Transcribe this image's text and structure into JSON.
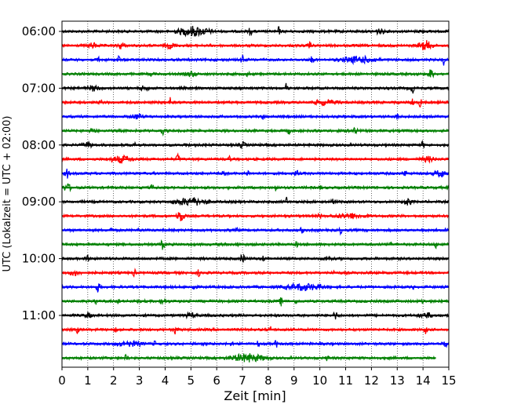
{
  "chart_data": {
    "type": "line",
    "title": "",
    "xlabel": "Zeit  [min]",
    "ylabel": "UTC (Lokalzeit = UTC + 02:00)",
    "xlim": [
      0,
      15
    ],
    "x_ticks": [
      0,
      1,
      2,
      3,
      4,
      5,
      6,
      7,
      8,
      9,
      10,
      11,
      12,
      13,
      14,
      15
    ],
    "x_grid": true,
    "y_tick_labels": [
      "06:00",
      "07:00",
      "08:00",
      "09:00",
      "10:00",
      "11:00"
    ],
    "colors": [
      "#000000",
      "#ff0000",
      "#0000ff",
      "#008000"
    ],
    "rows": [
      {
        "time": "06:00",
        "color": "#000000",
        "end_min": 15,
        "events": [
          [
            5.1,
            0.9,
            6
          ],
          [
            7.3,
            0.08,
            6
          ],
          [
            8.4,
            0.08,
            6
          ],
          [
            12.3,
            0.3,
            3
          ],
          [
            13.9,
            0.08,
            4
          ]
        ]
      },
      {
        "time": "06:15",
        "color": "#ff0000",
        "end_min": 15,
        "events": [
          [
            1.2,
            0.3,
            3
          ],
          [
            2.3,
            0.2,
            4
          ],
          [
            4.2,
            0.3,
            3
          ],
          [
            9.6,
            0.08,
            6
          ],
          [
            14.1,
            0.4,
            6
          ]
        ]
      },
      {
        "time": "06:30",
        "color": "#0000ff",
        "end_min": 15,
        "events": [
          [
            1.4,
            0.08,
            5
          ],
          [
            2.2,
            0.08,
            5
          ],
          [
            7.0,
            0.08,
            7
          ],
          [
            9.7,
            0.08,
            6
          ],
          [
            11.5,
            1.0,
            4
          ],
          [
            14.8,
            0.08,
            6
          ]
        ]
      },
      {
        "time": "06:45",
        "color": "#008000",
        "end_min": 15,
        "events": [
          [
            3.5,
            0.08,
            4
          ],
          [
            5.0,
            0.3,
            3
          ],
          [
            7.2,
            0.08,
            4
          ],
          [
            14.3,
            0.15,
            6
          ]
        ]
      },
      {
        "time": "07:00",
        "color": "#000000",
        "end_min": 15,
        "events": [
          [
            1.2,
            0.4,
            3
          ],
          [
            3.2,
            0.2,
            3
          ],
          [
            8.7,
            0.1,
            6
          ],
          [
            13.6,
            0.1,
            6
          ]
        ]
      },
      {
        "time": "07:15",
        "color": "#ff0000",
        "end_min": 15,
        "events": [
          [
            1.5,
            0.08,
            4
          ],
          [
            4.2,
            0.08,
            6
          ],
          [
            10.2,
            0.7,
            3
          ],
          [
            13.6,
            0.08,
            6
          ],
          [
            13.9,
            0.08,
            6
          ]
        ]
      },
      {
        "time": "07:30",
        "color": "#0000ff",
        "end_min": 15,
        "events": [
          [
            2.9,
            0.3,
            3
          ],
          [
            7.8,
            0.08,
            3
          ],
          [
            13.0,
            0.08,
            4
          ]
        ]
      },
      {
        "time": "07:45",
        "color": "#008000",
        "end_min": 15,
        "events": [
          [
            1.2,
            0.15,
            4
          ],
          [
            3.9,
            0.08,
            6
          ],
          [
            8.8,
            0.08,
            4
          ],
          [
            11.3,
            0.3,
            3
          ]
        ]
      },
      {
        "time": "08:00",
        "color": "#000000",
        "end_min": 15,
        "events": [
          [
            1.0,
            0.3,
            3
          ],
          [
            2.8,
            0.08,
            3
          ],
          [
            4.8,
            0.08,
            3
          ],
          [
            7.0,
            0.2,
            3
          ],
          [
            14.0,
            0.08,
            5
          ]
        ]
      },
      {
        "time": "08:15",
        "color": "#ff0000",
        "end_min": 15,
        "events": [
          [
            2.3,
            0.7,
            4
          ],
          [
            4.5,
            0.1,
            6
          ],
          [
            6.5,
            0.1,
            3
          ],
          [
            14.2,
            0.4,
            3
          ]
        ]
      },
      {
        "time": "08:30",
        "color": "#0000ff",
        "end_min": 15,
        "events": [
          [
            0.2,
            0.1,
            7
          ],
          [
            6.3,
            0.1,
            6
          ],
          [
            7.2,
            0.1,
            4
          ],
          [
            9.1,
            0.1,
            5
          ],
          [
            13.3,
            0.1,
            4
          ],
          [
            14.7,
            0.4,
            4
          ]
        ]
      },
      {
        "time": "08:45",
        "color": "#008000",
        "end_min": 15,
        "events": [
          [
            0.2,
            0.2,
            5
          ],
          [
            3.5,
            0.08,
            4
          ],
          [
            8.3,
            0.08,
            5
          ],
          [
            10.0,
            0.08,
            3
          ]
        ]
      },
      {
        "time": "09:00",
        "color": "#000000",
        "end_min": 15,
        "events": [
          [
            5.0,
            0.9,
            5
          ],
          [
            8.7,
            0.08,
            6
          ],
          [
            10.5,
            0.08,
            5
          ],
          [
            13.4,
            0.2,
            5
          ]
        ]
      },
      {
        "time": "09:15",
        "color": "#ff0000",
        "end_min": 15,
        "events": [
          [
            4.6,
            0.2,
            7
          ],
          [
            10.0,
            0.08,
            4
          ],
          [
            11.2,
            0.9,
            3
          ]
        ]
      },
      {
        "time": "09:30",
        "color": "#0000ff",
        "end_min": 15,
        "events": [
          [
            1.9,
            0.08,
            3
          ],
          [
            3.0,
            0.08,
            3
          ],
          [
            6.8,
            0.08,
            3
          ],
          [
            9.3,
            0.08,
            4
          ],
          [
            10.8,
            0.08,
            4
          ],
          [
            14.9,
            0.08,
            5
          ]
        ]
      },
      {
        "time": "09:45",
        "color": "#008000",
        "end_min": 15,
        "events": [
          [
            3.9,
            0.1,
            6
          ],
          [
            6.8,
            0.08,
            3
          ],
          [
            9.1,
            0.08,
            3
          ],
          [
            12.7,
            0.08,
            5
          ],
          [
            14.5,
            0.08,
            5
          ]
        ]
      },
      {
        "time": "10:00",
        "color": "#000000",
        "end_min": 15,
        "events": [
          [
            1.0,
            0.15,
            3
          ],
          [
            7.0,
            0.15,
            5
          ],
          [
            7.8,
            0.08,
            4
          ],
          [
            10.3,
            0.2,
            3
          ]
        ]
      },
      {
        "time": "10:15",
        "color": "#ff0000",
        "end_min": 15,
        "events": [
          [
            0.5,
            0.3,
            3
          ],
          [
            2.8,
            0.08,
            5
          ],
          [
            5.3,
            0.08,
            4
          ],
          [
            10.5,
            0.08,
            5
          ]
        ]
      },
      {
        "time": "10:30",
        "color": "#0000ff",
        "end_min": 15,
        "events": [
          [
            1.4,
            0.1,
            7
          ],
          [
            5.1,
            0.1,
            6
          ],
          [
            9.4,
            1.1,
            4
          ],
          [
            13.6,
            0.08,
            3
          ]
        ]
      },
      {
        "time": "10:45",
        "color": "#008000",
        "end_min": 15,
        "events": [
          [
            1.3,
            0.08,
            4
          ],
          [
            2.2,
            0.08,
            3
          ],
          [
            3.9,
            0.15,
            4
          ],
          [
            8.5,
            0.1,
            5
          ],
          [
            9.1,
            0.08,
            4
          ],
          [
            14.0,
            0.08,
            3
          ]
        ]
      },
      {
        "time": "11:00",
        "color": "#000000",
        "end_min": 15,
        "events": [
          [
            1.0,
            0.2,
            3
          ],
          [
            5.0,
            0.3,
            3
          ],
          [
            10.6,
            0.1,
            6
          ],
          [
            14.1,
            0.4,
            3
          ]
        ]
      },
      {
        "time": "11:15",
        "color": "#ff0000",
        "end_min": 15,
        "events": [
          [
            0.6,
            0.08,
            4
          ],
          [
            2.1,
            0.08,
            3
          ],
          [
            4.4,
            0.1,
            6
          ],
          [
            7.3,
            0.08,
            4
          ],
          [
            8.1,
            0.08,
            5
          ],
          [
            14.1,
            0.08,
            5
          ]
        ]
      },
      {
        "time": "11:30",
        "color": "#0000ff",
        "end_min": 15,
        "events": [
          [
            2.6,
            0.7,
            3
          ],
          [
            3.6,
            0.08,
            3
          ],
          [
            6.6,
            0.08,
            3
          ],
          [
            7.6,
            0.08,
            4
          ],
          [
            8.3,
            0.08,
            5
          ],
          [
            14.9,
            0.1,
            6
          ]
        ]
      },
      {
        "time": "11:45",
        "color": "#008000",
        "end_min": 14.5,
        "events": [
          [
            2.5,
            0.08,
            6
          ],
          [
            7.2,
            1.0,
            5
          ],
          [
            10.3,
            0.08,
            4
          ],
          [
            12.1,
            0.08,
            3
          ]
        ]
      }
    ]
  }
}
